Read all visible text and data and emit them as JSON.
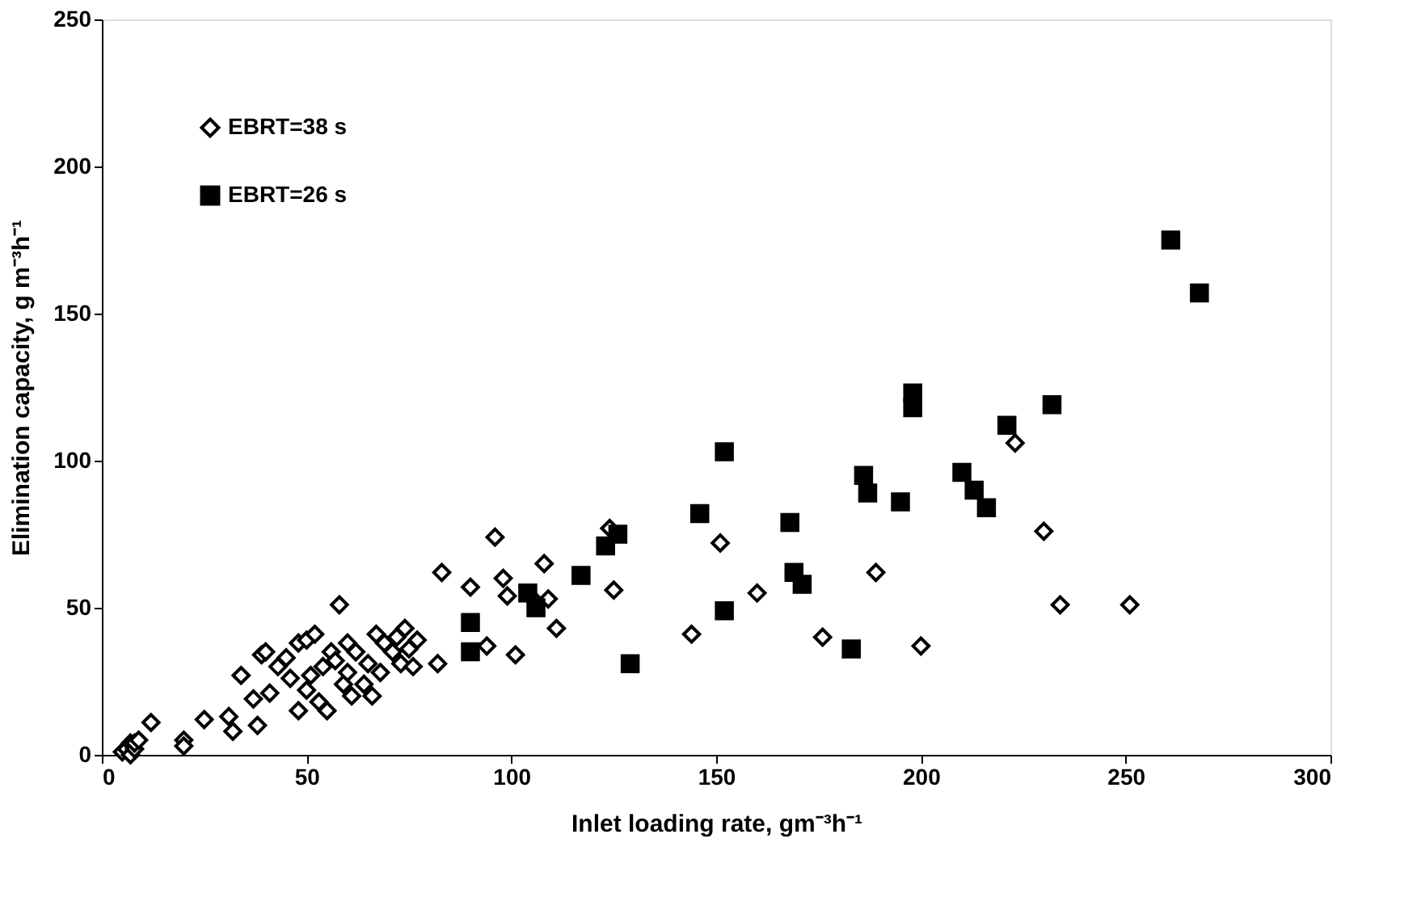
{
  "chart_data": {
    "type": "scatter",
    "xlabel": "Inlet loading rate, gm⁻³h⁻¹",
    "ylabel": "Elimination capacity, g m⁻³h⁻¹",
    "xlim": [
      0,
      300
    ],
    "xticks": [
      0,
      50,
      100,
      150,
      200,
      250,
      300
    ],
    "ylim": [
      0,
      250
    ],
    "yticks": [
      0,
      50,
      100,
      150,
      200,
      250
    ],
    "grid": false,
    "legend": "top left",
    "series": [
      {
        "name": "EBRT=38 s",
        "color": "#000000",
        "marker": "diamond",
        "x": [
          5,
          6,
          7,
          7,
          8,
          8,
          9,
          12,
          20,
          20,
          25,
          31,
          32,
          34,
          37,
          38,
          39,
          40,
          41,
          43,
          45,
          46,
          48,
          48,
          50,
          50,
          51,
          52,
          53,
          54,
          55,
          56,
          57,
          58,
          59,
          60,
          60,
          61,
          62,
          64,
          65,
          66,
          67,
          68,
          69,
          71,
          72,
          73,
          74,
          75,
          76,
          77,
          82,
          83,
          90,
          94,
          96,
          98,
          99,
          101,
          106,
          108,
          109,
          111,
          124,
          125,
          144,
          151,
          160,
          176,
          189,
          200,
          223,
          230,
          234,
          251
        ],
        "values": [
          1,
          2,
          4,
          0,
          2,
          4,
          5,
          11,
          5,
          3,
          12,
          13,
          8,
          27,
          19,
          10,
          34,
          35,
          21,
          30,
          33,
          26,
          38,
          15,
          39,
          22,
          27,
          41,
          18,
          30,
          15,
          35,
          32,
          51,
          24,
          28,
          38,
          20,
          35,
          24,
          31,
          20,
          41,
          28,
          38,
          35,
          40,
          31,
          43,
          36,
          30,
          39,
          31,
          62,
          57,
          37,
          74,
          60,
          54,
          34,
          52,
          65,
          53,
          43,
          77,
          56,
          41,
          72,
          55,
          40,
          62,
          37,
          106,
          76,
          51,
          51
        ]
      },
      {
        "name": "EBRT=26 s",
        "color": "#000000",
        "marker": "square",
        "x": [
          90,
          90,
          104,
          106,
          117,
          123,
          126,
          129,
          146,
          152,
          152,
          168,
          169,
          171,
          183,
          186,
          187,
          195,
          198,
          198,
          210,
          213,
          216,
          221,
          232,
          261,
          268
        ],
        "values": [
          45,
          35,
          55,
          50,
          61,
          71,
          75,
          31,
          82,
          103,
          49,
          79,
          62,
          58,
          36,
          95,
          89,
          86,
          118,
          123,
          96,
          90,
          84,
          112,
          119,
          175,
          157
        ]
      }
    ]
  }
}
